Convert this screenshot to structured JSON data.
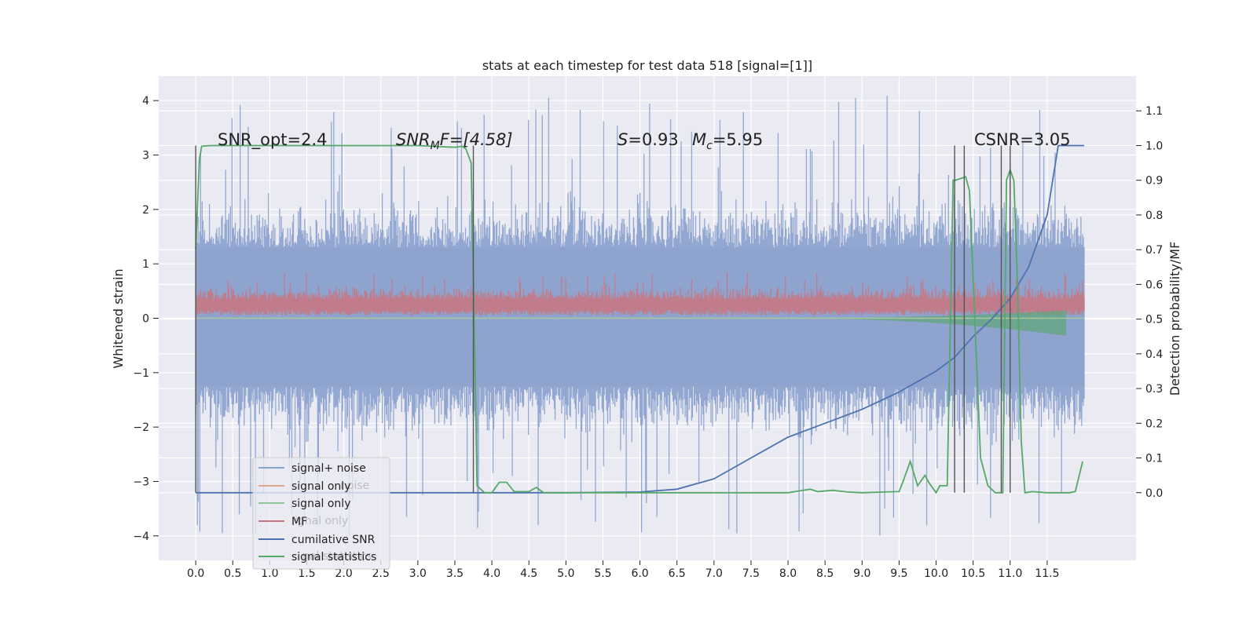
{
  "chart_data": {
    "type": "line",
    "title": "stats at each timestep for test data 518 [signal=[1]]",
    "xlabel": "",
    "ylabel": "Whitened strain",
    "y2label": "Detection probability/MF",
    "xlim": [
      -0.5,
      12.7
    ],
    "ylim": [
      -4.45,
      4.45
    ],
    "y2lim": [
      -0.195,
      1.2
    ],
    "x_ticks": [
      "0.0",
      "0.5",
      "1.0",
      "1.5",
      "2.0",
      "2.5",
      "3.0",
      "3.5",
      "4.0",
      "4.5",
      "5.0",
      "5.5",
      "6.0",
      "6.5",
      "7.0",
      "7.5",
      "8.0",
      "8.5",
      "9.0",
      "9.5",
      "10.0",
      "10.5",
      "11.0",
      "11.5"
    ],
    "y_ticks": [
      "4",
      "3",
      "2",
      "1",
      "0",
      "−1",
      "−2",
      "−3",
      "−4"
    ],
    "y2_ticks": [
      "1.1",
      "1.0",
      "0.9",
      "0.8",
      "0.7",
      "0.6",
      "0.5",
      "0.4",
      "0.3",
      "0.2",
      "0.1",
      "0.0"
    ],
    "grid": true,
    "legend_position": "lower-left",
    "annotations": {
      "snr_opt": "SNR_opt=2.4",
      "snr_mf_pre": "SNR",
      "snr_mf_sub": "M",
      "snr_mf_post": "F=[4.58]",
      "s_label": "S",
      "s_value": "=0.93",
      "mc_label": "M",
      "mc_sub": "c",
      "mc_value": "=5.95",
      "csnr": "CSNR=3.05"
    },
    "legend": [
      {
        "label": "signal+ noise",
        "color": "#8da3cf"
      },
      {
        "label": "signal only",
        "color": "#e0a68a"
      },
      {
        "label": "signal only",
        "color": "#8fc89a"
      },
      {
        "label": "MF",
        "color": "#c9757f"
      },
      {
        "label": "cumilative SNR",
        "color": "#4c72b0"
      },
      {
        "label": "signal statistics",
        "color": "#55a868"
      }
    ],
    "legend_ghost_text": [
      "noise",
      "ignal only",
      "nal statistics"
    ],
    "series": [
      {
        "name": "signal+ noise",
        "color": "#8da3cf",
        "envelope": {
          "x": [
            0.0,
            12.0
          ],
          "core_upper": 1.3,
          "core_lower": -1.25,
          "typical_peak_upper": 2.6,
          "typical_peak_lower": -2.7,
          "max": 4.1,
          "min": -4.0
        }
      },
      {
        "name": "MF",
        "color": "#c9757f",
        "envelope": {
          "x": [
            0.0,
            12.0
          ],
          "upper": 0.6,
          "lower": 0.0,
          "max": 0.85
        }
      },
      {
        "name": "signal only",
        "color": "#55a868",
        "chirp": {
          "start": 7.8,
          "end": 11.75,
          "max_amplitude": 0.32
        }
      },
      {
        "name": "cumilative SNR",
        "color": "#4c72b0",
        "axis": "y2",
        "x": [
          0.0,
          3.75,
          5.0,
          6.0,
          6.5,
          7.0,
          7.5,
          8.0,
          8.5,
          9.0,
          9.5,
          10.0,
          10.25,
          10.5,
          10.75,
          11.0,
          11.25,
          11.5,
          11.65,
          11.75,
          12.0
        ],
        "values": [
          0.0,
          0.0,
          0.0,
          0.002,
          0.01,
          0.04,
          0.1,
          0.16,
          0.2,
          0.24,
          0.29,
          0.35,
          0.39,
          0.45,
          0.5,
          0.56,
          0.65,
          0.8,
          1.0,
          1.0,
          1.0
        ]
      },
      {
        "name": "signal statistics",
        "color": "#55a868",
        "axis": "y2",
        "x": [
          0.0,
          0.05,
          0.08,
          0.2,
          0.5,
          1.0,
          2.0,
          2.8,
          3.0,
          3.5,
          3.6,
          3.65,
          3.72,
          3.76,
          3.8,
          3.9,
          4.0,
          4.1,
          4.2,
          4.3,
          4.5,
          4.6,
          4.7,
          5.0,
          6.0,
          7.0,
          8.0,
          8.3,
          8.4,
          8.6,
          8.8,
          9.0,
          9.3,
          9.5,
          9.55,
          9.65,
          9.75,
          9.85,
          9.9,
          10.0,
          10.05,
          10.15,
          10.23,
          10.26,
          10.4,
          10.45,
          10.6,
          10.7,
          10.8,
          10.9,
          10.95,
          11.0,
          11.05,
          11.1,
          11.15,
          11.2,
          11.3,
          11.5,
          11.8,
          11.88,
          11.98
        ],
        "values": [
          0.7,
          0.96,
          0.998,
          1.0,
          1.0,
          1.0,
          1.0,
          1.0,
          1.0,
          0.995,
          0.998,
          0.99,
          0.95,
          0.5,
          0.02,
          0.0,
          0.0,
          0.03,
          0.03,
          0.003,
          0.003,
          0.015,
          0.0,
          0.0,
          0.0,
          0.0,
          0.0,
          0.01,
          0.003,
          0.007,
          0.002,
          0.0,
          0.002,
          0.003,
          0.03,
          0.09,
          0.02,
          0.05,
          0.03,
          0.0,
          0.02,
          0.02,
          0.9,
          0.9,
          0.91,
          0.87,
          0.1,
          0.02,
          0.0,
          0.0,
          0.9,
          0.93,
          0.9,
          0.6,
          0.15,
          0.0,
          0.003,
          0.0,
          0.0,
          0.003,
          0.09
        ]
      }
    ],
    "vertical_markers": [
      {
        "x": 0.0,
        "y2_from": 0.0,
        "y2_to": 1.0
      },
      {
        "x": 3.75,
        "y2_from": 0.0,
        "y2_to": 1.0
      },
      {
        "x": 10.25,
        "y2_from": 0.0,
        "y2_to": 1.0
      },
      {
        "x": 10.38,
        "y2_from": 0.0,
        "y2_to": 1.0
      },
      {
        "x": 10.88,
        "y2_from": 0.0,
        "y2_to": 1.0
      },
      {
        "x": 11.0,
        "y2_from": 0.0,
        "y2_to": 1.0
      }
    ]
  }
}
